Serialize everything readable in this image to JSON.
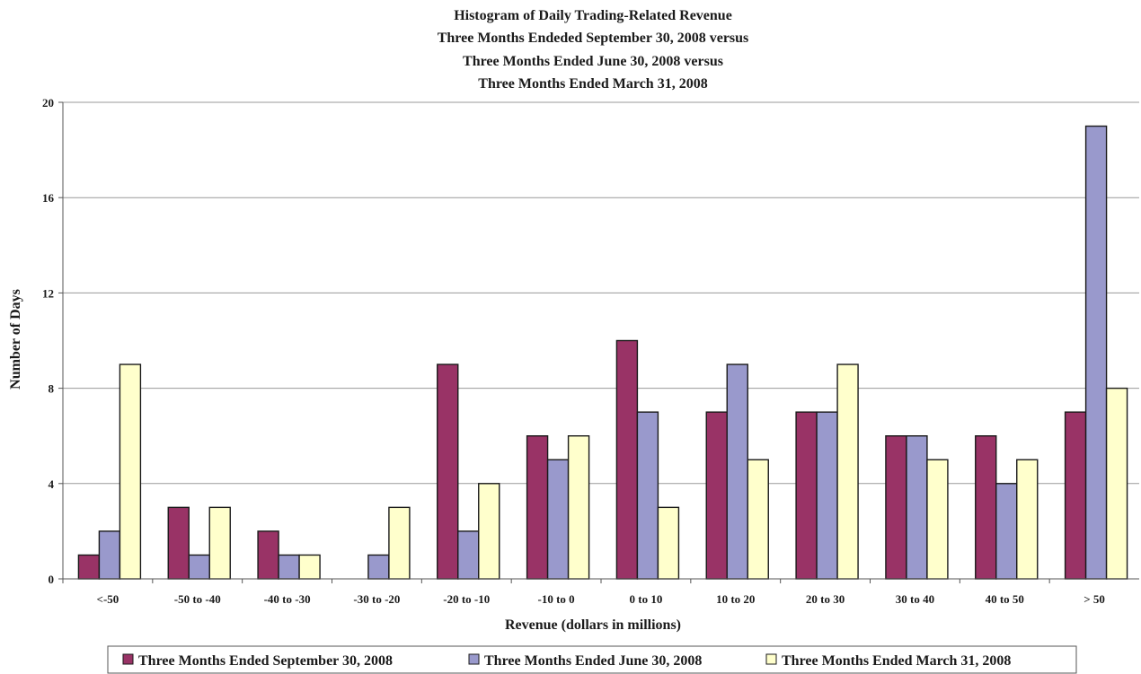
{
  "chart_data": {
    "type": "bar",
    "title_lines": [
      "Histogram of Daily Trading-Related Revenue",
      "Three Months Endeded September 30, 2008 versus",
      "Three Months Ended June 30, 2008 versus",
      "Three Months Ended March 31, 2008"
    ],
    "xlabel": "Revenue (dollars in millions)",
    "ylabel": "Number of Days",
    "ylim": [
      0,
      20
    ],
    "yticks": [
      0,
      4,
      8,
      12,
      16,
      20
    ],
    "grid": true,
    "legend_position": "bottom",
    "categories": [
      "<-50",
      "-50 to -40",
      "-40 to -30",
      "-30 to -20",
      "-20 to -10",
      "-10 to 0",
      "0 to 10",
      "10 to 20",
      "20 to 30",
      "30 to 40",
      "40 to 50",
      "> 50"
    ],
    "series": [
      {
        "name": "Three Months Ended September 30, 2008",
        "color": "#993366",
        "values": [
          1,
          3,
          2,
          0,
          9,
          6,
          10,
          7,
          7,
          6,
          6,
          7
        ]
      },
      {
        "name": "Three Months Ended June 30, 2008",
        "color": "#9999cc",
        "values": [
          2,
          1,
          1,
          1,
          2,
          5,
          7,
          9,
          7,
          6,
          4,
          19
        ]
      },
      {
        "name": "Three Months Ended March 31, 2008",
        "color": "#ffffcc",
        "values": [
          9,
          3,
          1,
          3,
          4,
          6,
          3,
          5,
          9,
          5,
          5,
          8
        ]
      }
    ]
  }
}
